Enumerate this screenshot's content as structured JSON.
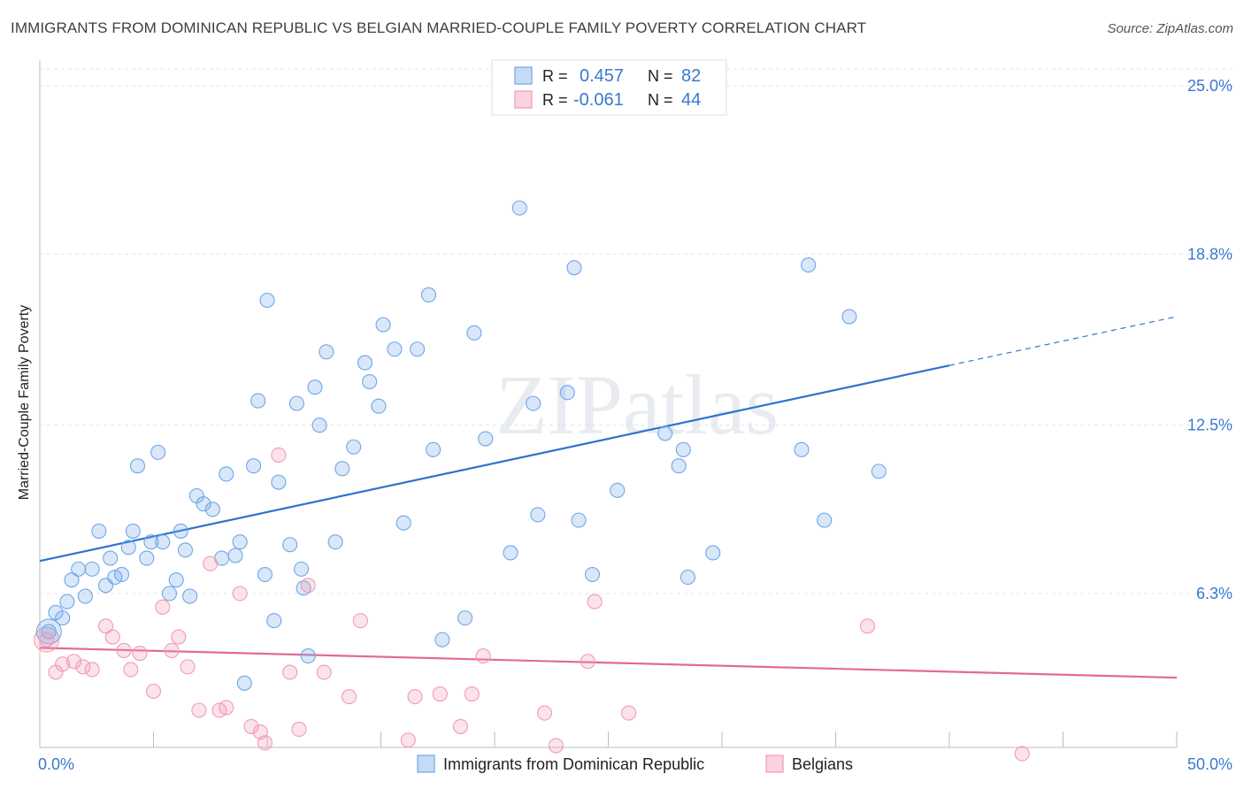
{
  "chart_data": {
    "type": "scatter",
    "title": "IMMIGRANTS FROM DOMINICAN REPUBLIC VS BELGIAN MARRIED-COUPLE FAMILY POVERTY CORRELATION CHART",
    "source": "Source: ZipAtlas.com",
    "xlabel": "",
    "ylabel": "Married-Couple Family Poverty",
    "xlim": [
      0,
      50
    ],
    "ylim": [
      0,
      25.5
    ],
    "x_tick_labels": [
      "0.0%",
      "50.0%"
    ],
    "y_ticks": [
      6.3,
      12.5,
      18.8,
      25.0
    ],
    "y_tick_labels": [
      "6.3%",
      "12.5%",
      "18.8%",
      "25.0%"
    ],
    "watermark": "ZIPatlas",
    "legend": [
      {
        "name": "Immigrants from Dominican Republic",
        "r_label": "R =",
        "r_value": "0.457",
        "n_label": "N =",
        "n_value": "82",
        "color": "#6fa6e8"
      },
      {
        "name": "Belgians",
        "r_label": "R =",
        "r_value": "-0.061",
        "n_label": "N =",
        "n_value": "44",
        "color": "#f29ab4"
      }
    ],
    "series": [
      {
        "name": "Immigrants from Dominican Republic",
        "color": "#6fa6e8",
        "trend": {
          "x0": 0,
          "y0": 7.5,
          "x1": 40,
          "y1": 14.7,
          "x_dash_end": 50,
          "y_dash_end": 16.5
        },
        "points": [
          [
            0.4,
            4.9
          ],
          [
            0.7,
            5.6
          ],
          [
            1.0,
            5.4
          ],
          [
            1.2,
            6.0
          ],
          [
            1.4,
            6.8
          ],
          [
            1.7,
            7.2
          ],
          [
            2.0,
            6.2
          ],
          [
            2.3,
            7.2
          ],
          [
            2.6,
            8.6
          ],
          [
            2.9,
            6.6
          ],
          [
            3.1,
            7.6
          ],
          [
            3.3,
            6.9
          ],
          [
            3.6,
            7.0
          ],
          [
            3.9,
            8.0
          ],
          [
            4.1,
            8.6
          ],
          [
            4.3,
            11.0
          ],
          [
            4.7,
            7.6
          ],
          [
            4.9,
            8.2
          ],
          [
            5.2,
            11.5
          ],
          [
            5.4,
            8.2
          ],
          [
            5.7,
            6.3
          ],
          [
            6.0,
            6.8
          ],
          [
            6.2,
            8.6
          ],
          [
            6.4,
            7.9
          ],
          [
            6.6,
            6.2
          ],
          [
            6.9,
            9.9
          ],
          [
            7.2,
            9.6
          ],
          [
            7.6,
            9.4
          ],
          [
            8.0,
            7.6
          ],
          [
            8.2,
            10.7
          ],
          [
            8.6,
            7.7
          ],
          [
            8.8,
            8.2
          ],
          [
            9.0,
            3.0
          ],
          [
            9.4,
            11.0
          ],
          [
            9.6,
            13.4
          ],
          [
            9.9,
            7.0
          ],
          [
            10.0,
            17.1
          ],
          [
            10.3,
            5.3
          ],
          [
            10.5,
            10.4
          ],
          [
            11.0,
            8.1
          ],
          [
            11.3,
            13.3
          ],
          [
            11.5,
            7.2
          ],
          [
            11.6,
            6.5
          ],
          [
            11.8,
            4.0
          ],
          [
            12.1,
            13.9
          ],
          [
            12.3,
            12.5
          ],
          [
            12.6,
            15.2
          ],
          [
            13.0,
            8.2
          ],
          [
            13.3,
            10.9
          ],
          [
            13.8,
            11.7
          ],
          [
            14.3,
            14.8
          ],
          [
            14.5,
            14.1
          ],
          [
            14.9,
            13.2
          ],
          [
            15.1,
            16.2
          ],
          [
            15.6,
            15.3
          ],
          [
            16.0,
            8.9
          ],
          [
            16.6,
            15.3
          ],
          [
            17.1,
            17.3
          ],
          [
            17.3,
            11.6
          ],
          [
            17.7,
            4.6
          ],
          [
            18.7,
            5.4
          ],
          [
            19.1,
            15.9
          ],
          [
            19.6,
            12.0
          ],
          [
            20.7,
            7.8
          ],
          [
            21.1,
            20.5
          ],
          [
            21.7,
            13.3
          ],
          [
            21.9,
            9.2
          ],
          [
            23.2,
            13.7
          ],
          [
            23.5,
            18.3
          ],
          [
            23.7,
            9.0
          ],
          [
            24.3,
            7.0
          ],
          [
            25.4,
            10.1
          ],
          [
            27.5,
            12.2
          ],
          [
            28.1,
            11.0
          ],
          [
            28.3,
            11.6
          ],
          [
            28.5,
            6.9
          ],
          [
            29.6,
            7.8
          ],
          [
            33.5,
            11.6
          ],
          [
            33.8,
            18.4
          ],
          [
            34.5,
            9.0
          ],
          [
            35.6,
            16.5
          ],
          [
            36.9,
            10.8
          ]
        ]
      },
      {
        "name": "Belgians",
        "color": "#f29ab4",
        "trend": {
          "x0": 0,
          "y0": 4.3,
          "x1": 50,
          "y1": 3.2
        },
        "points": [
          [
            0.3,
            4.6
          ],
          [
            0.7,
            3.4
          ],
          [
            1.0,
            3.7
          ],
          [
            1.5,
            3.8
          ],
          [
            1.9,
            3.6
          ],
          [
            2.3,
            3.5
          ],
          [
            2.9,
            5.1
          ],
          [
            3.2,
            4.7
          ],
          [
            3.7,
            4.2
          ],
          [
            4.0,
            3.5
          ],
          [
            4.4,
            4.1
          ],
          [
            5.0,
            2.7
          ],
          [
            5.4,
            5.8
          ],
          [
            5.8,
            4.2
          ],
          [
            6.1,
            4.7
          ],
          [
            6.5,
            3.6
          ],
          [
            7.0,
            2.0
          ],
          [
            7.5,
            7.4
          ],
          [
            7.9,
            2.0
          ],
          [
            8.2,
            2.1
          ],
          [
            8.8,
            6.3
          ],
          [
            9.3,
            1.4
          ],
          [
            9.7,
            1.2
          ],
          [
            9.9,
            0.8
          ],
          [
            10.5,
            11.4
          ],
          [
            11.0,
            3.4
          ],
          [
            11.4,
            1.3
          ],
          [
            11.8,
            6.6
          ],
          [
            12.5,
            3.4
          ],
          [
            13.6,
            2.5
          ],
          [
            14.1,
            5.3
          ],
          [
            16.2,
            0.9
          ],
          [
            16.5,
            2.5
          ],
          [
            17.6,
            2.6
          ],
          [
            18.5,
            1.4
          ],
          [
            19.0,
            2.6
          ],
          [
            19.5,
            4.0
          ],
          [
            22.2,
            1.9
          ],
          [
            22.7,
            0.7
          ],
          [
            24.1,
            3.8
          ],
          [
            24.4,
            6.0
          ],
          [
            25.9,
            1.9
          ],
          [
            36.4,
            5.1
          ],
          [
            43.2,
            0.4
          ]
        ]
      }
    ]
  }
}
